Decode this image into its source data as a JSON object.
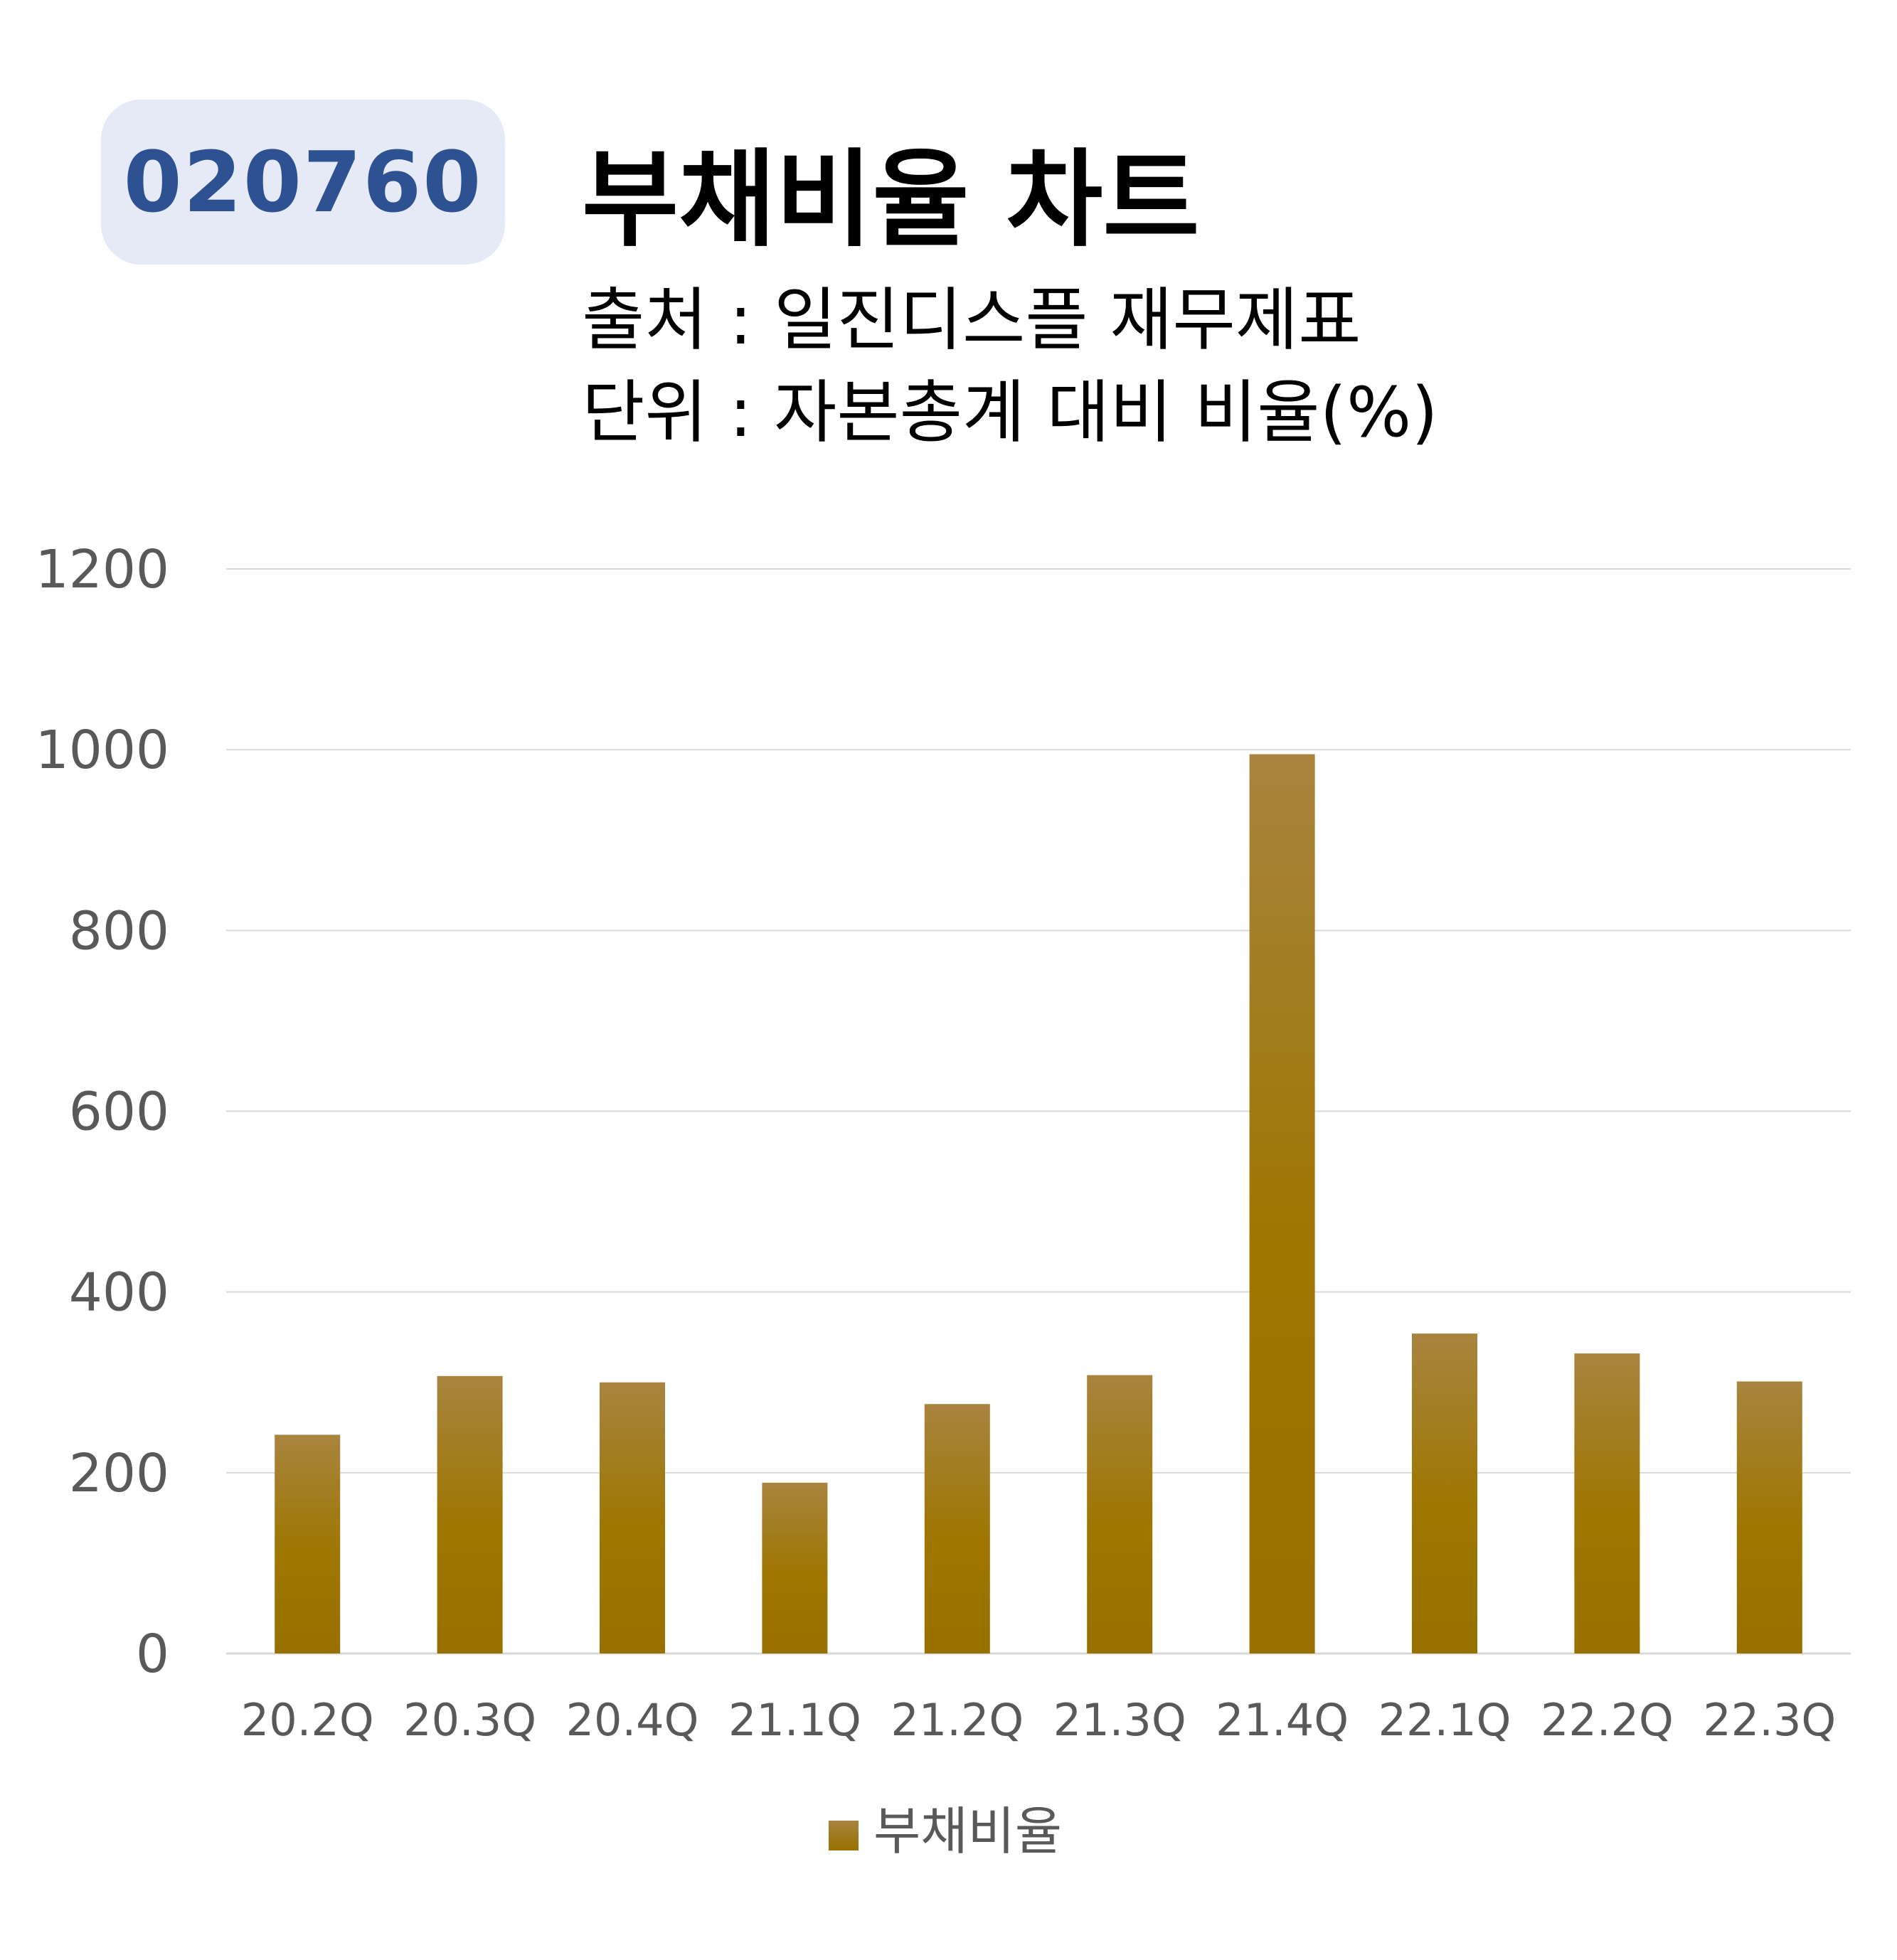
{
  "header": {
    "ticker": "020760",
    "title": "부채비율 차트",
    "source_line": "출처 : 일진디스플 재무제표",
    "unit_line": "단위 : 자본총계 대비 비율(%)"
  },
  "colors": {
    "bar_top": "#a8843f",
    "bar_bottom": "#987000",
    "grid": "#d9d9d9",
    "badge_bg": "#e5eaf6",
    "badge_text": "#2e5191"
  },
  "chart_data": {
    "type": "bar",
    "categories": [
      "20.2Q",
      "20.3Q",
      "20.4Q",
      "21.1Q",
      "21.2Q",
      "21.3Q",
      "21.4Q",
      "22.1Q",
      "22.2Q",
      "22.3Q"
    ],
    "series": [
      {
        "name": "부채비율",
        "values": [
          242,
          307,
          300,
          189,
          276,
          308,
          995,
          354,
          332,
          301
        ]
      }
    ],
    "ylim": [
      0,
      1200
    ],
    "yticks": [
      0,
      200,
      400,
      600,
      800,
      1000,
      1200
    ],
    "grid": true,
    "legend": "bottom"
  }
}
